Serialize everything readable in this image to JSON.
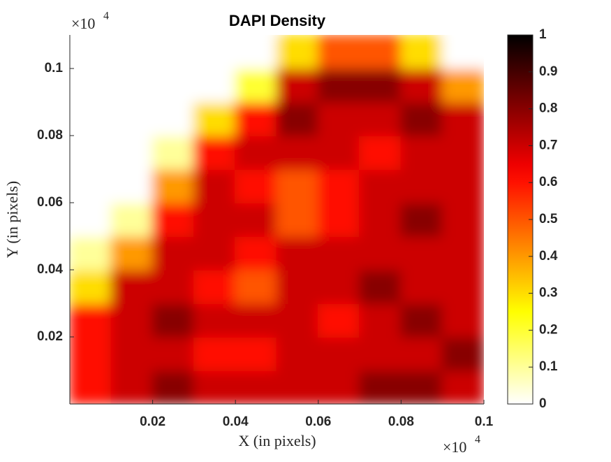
{
  "chart_data": {
    "type": "heatmap",
    "title": "DAPI Density",
    "x_label": "X (in pixels)",
    "y_label": "Y (in pixels)",
    "x_multiplier": {
      "base": "×10",
      "power": "4"
    },
    "y_multiplier": {
      "base": "×10",
      "power": "4"
    },
    "xlim": [
      0,
      0.1
    ],
    "ylim": [
      0,
      0.11
    ],
    "xticks": [
      0.02,
      0.04,
      0.06,
      0.08,
      0.1
    ],
    "yticks": [
      0.02,
      0.04,
      0.06,
      0.08,
      0.1
    ],
    "x": [
      0.005,
      0.015,
      0.025,
      0.035,
      0.045,
      0.055,
      0.065,
      0.075,
      0.085,
      0.095
    ],
    "y": [
      0.005,
      0.015,
      0.025,
      0.035,
      0.045,
      0.055,
      0.065,
      0.075,
      0.085,
      0.095,
      0.105
    ],
    "z": [
      [
        0.6,
        0.7,
        0.8,
        0.7,
        0.7,
        0.7,
        0.7,
        0.8,
        0.8,
        0.7
      ],
      [
        0.6,
        0.7,
        0.7,
        0.6,
        0.6,
        0.7,
        0.7,
        0.7,
        0.7,
        0.8
      ],
      [
        0.6,
        0.7,
        0.8,
        0.7,
        0.7,
        0.7,
        0.6,
        0.7,
        0.8,
        0.7
      ],
      [
        0.3,
        0.7,
        0.7,
        0.6,
        0.5,
        0.7,
        0.7,
        0.8,
        0.7,
        0.7
      ],
      [
        0.1,
        0.4,
        0.7,
        0.7,
        0.6,
        0.7,
        0.7,
        0.7,
        0.7,
        0.7
      ],
      [
        0,
        0.1,
        0.6,
        0.7,
        0.7,
        0.5,
        0.6,
        0.7,
        0.8,
        0.7
      ],
      [
        0,
        0,
        0.4,
        0.7,
        0.6,
        0.5,
        0.6,
        0.7,
        0.7,
        0.7
      ],
      [
        0,
        0,
        0.1,
        0.6,
        0.7,
        0.7,
        0.7,
        0.6,
        0.7,
        0.7
      ],
      [
        0,
        0,
        0,
        0.3,
        0.6,
        0.8,
        0.7,
        0.7,
        0.8,
        0.7
      ],
      [
        0,
        0,
        0,
        0,
        0.2,
        0.7,
        0.8,
        0.8,
        0.7,
        0.4
      ],
      [
        0,
        0,
        0,
        0,
        0,
        0.3,
        0.5,
        0.5,
        0.3,
        0
      ]
    ],
    "colormap": "hot-reversed",
    "clim": [
      0,
      1
    ],
    "colorbar_ticks": [
      0,
      0.1,
      0.2,
      0.3,
      0.4,
      0.5,
      0.6,
      0.7,
      0.8,
      0.9,
      1
    ]
  }
}
